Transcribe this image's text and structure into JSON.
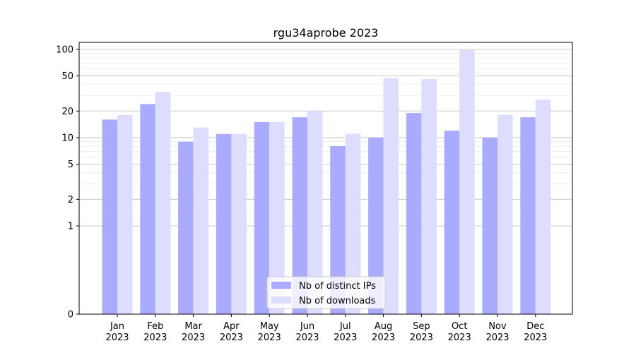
{
  "chart_data": {
    "type": "bar",
    "title": "rgu34aprobe 2023",
    "xlabel": "",
    "ylabel": "",
    "y_scale": "symlog",
    "ylim": [
      0,
      120
    ],
    "y_ticks": [
      0,
      1,
      2,
      5,
      10,
      20,
      50,
      100
    ],
    "grid": "horizontal",
    "legend_position": "bottom-center",
    "categories": [
      {
        "month": "Jan",
        "year": "2023"
      },
      {
        "month": "Feb",
        "year": "2023"
      },
      {
        "month": "Mar",
        "year": "2023"
      },
      {
        "month": "Apr",
        "year": "2023"
      },
      {
        "month": "May",
        "year": "2023"
      },
      {
        "month": "Jun",
        "year": "2023"
      },
      {
        "month": "Jul",
        "year": "2023"
      },
      {
        "month": "Aug",
        "year": "2023"
      },
      {
        "month": "Sep",
        "year": "2023"
      },
      {
        "month": "Oct",
        "year": "2023"
      },
      {
        "month": "Nov",
        "year": "2023"
      },
      {
        "month": "Dec",
        "year": "2023"
      }
    ],
    "series": [
      {
        "name": "Nb of distinct IPs",
        "color": "#aaaaff",
        "values": [
          16,
          24,
          9,
          11,
          15,
          17,
          8,
          10,
          19,
          12,
          10,
          17
        ]
      },
      {
        "name": "Nb of downloads",
        "color": "#ddddff",
        "values": [
          18,
          33,
          13,
          11,
          15,
          20,
          11,
          47,
          46,
          98,
          18,
          27
        ]
      }
    ]
  }
}
